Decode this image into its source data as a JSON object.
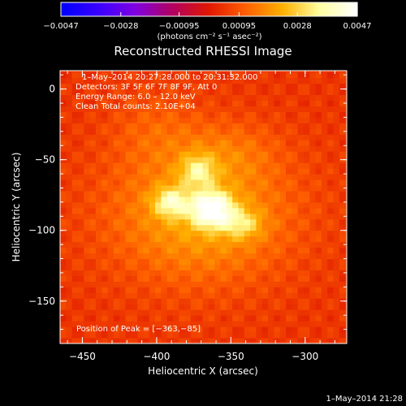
{
  "chart_data": {
    "type": "heatmap",
    "title": "Reconstructed RHESSI Image",
    "xlabel": "Heliocentric X (arcsec)",
    "ylabel": "Heliocentric Y (arcsec)",
    "xlim": [
      -465,
      -272
    ],
    "ylim": [
      -180,
      13
    ],
    "x_ticks": [
      -450,
      -400,
      -350,
      -300
    ],
    "x_tick_labels": [
      "−450",
      "−400",
      "−350",
      "−300"
    ],
    "y_ticks": [
      0,
      -50,
      -100,
      -150
    ],
    "y_tick_labels": [
      "0",
      "−50",
      "−100",
      "−150"
    ],
    "colorbar": {
      "range": [
        -0.0047,
        0.0047
      ],
      "ticks": [
        -0.0047,
        -0.0028,
        -0.00095,
        0.00095,
        0.0028,
        0.0047
      ],
      "tick_labels": [
        "−0.0047",
        "−0.0028",
        "−0.00095",
        "0.00095",
        "0.0028",
        "0.0047"
      ],
      "unit_label": "(photons cm⁻² s⁻¹ asec⁻²)",
      "colors": [
        "#0000ff",
        "#3a00ff",
        "#8000e0",
        "#b30060",
        "#e01800",
        "#ff6000",
        "#ffb000",
        "#ffffa0",
        "#ffffff"
      ]
    },
    "info_lines": [
      "1–May–2014 20:27:28.000 to 20:31:32.000",
      "Detectors: 3F 5F 6F 7F 8F 9F, Att 0",
      "Energy Range: 6.0 – 12.0 keV",
      "Clean    Total counts: 2.10E+04"
    ],
    "peak_label": "Position of Peak = [−363,−85]",
    "peak": {
      "x": -363,
      "y": -85,
      "value": 0.0047
    },
    "sources": [
      {
        "x": -363,
        "y": -85,
        "sx": 9,
        "sy": 8,
        "amp": 1.0
      },
      {
        "x": -390,
        "y": -80,
        "sx": 8,
        "sy": 7,
        "amp": 0.55
      },
      {
        "x": -372,
        "y": -58,
        "sx": 8,
        "sy": 8,
        "amp": 0.45
      },
      {
        "x": -343,
        "y": -95,
        "sx": 9,
        "sy": 7,
        "amp": 0.38
      },
      {
        "x": -370,
        "y": -88,
        "sx": 38,
        "sy": 30,
        "amp": 0.35
      },
      {
        "x": -352,
        "y": -45,
        "sx": 22,
        "sy": 14,
        "amp": 0.12
      },
      {
        "x": -400,
        "y": -30,
        "sx": 20,
        "sy": 18,
        "amp": 0.1
      }
    ],
    "timestamp": "1–May–2014 21:28"
  }
}
